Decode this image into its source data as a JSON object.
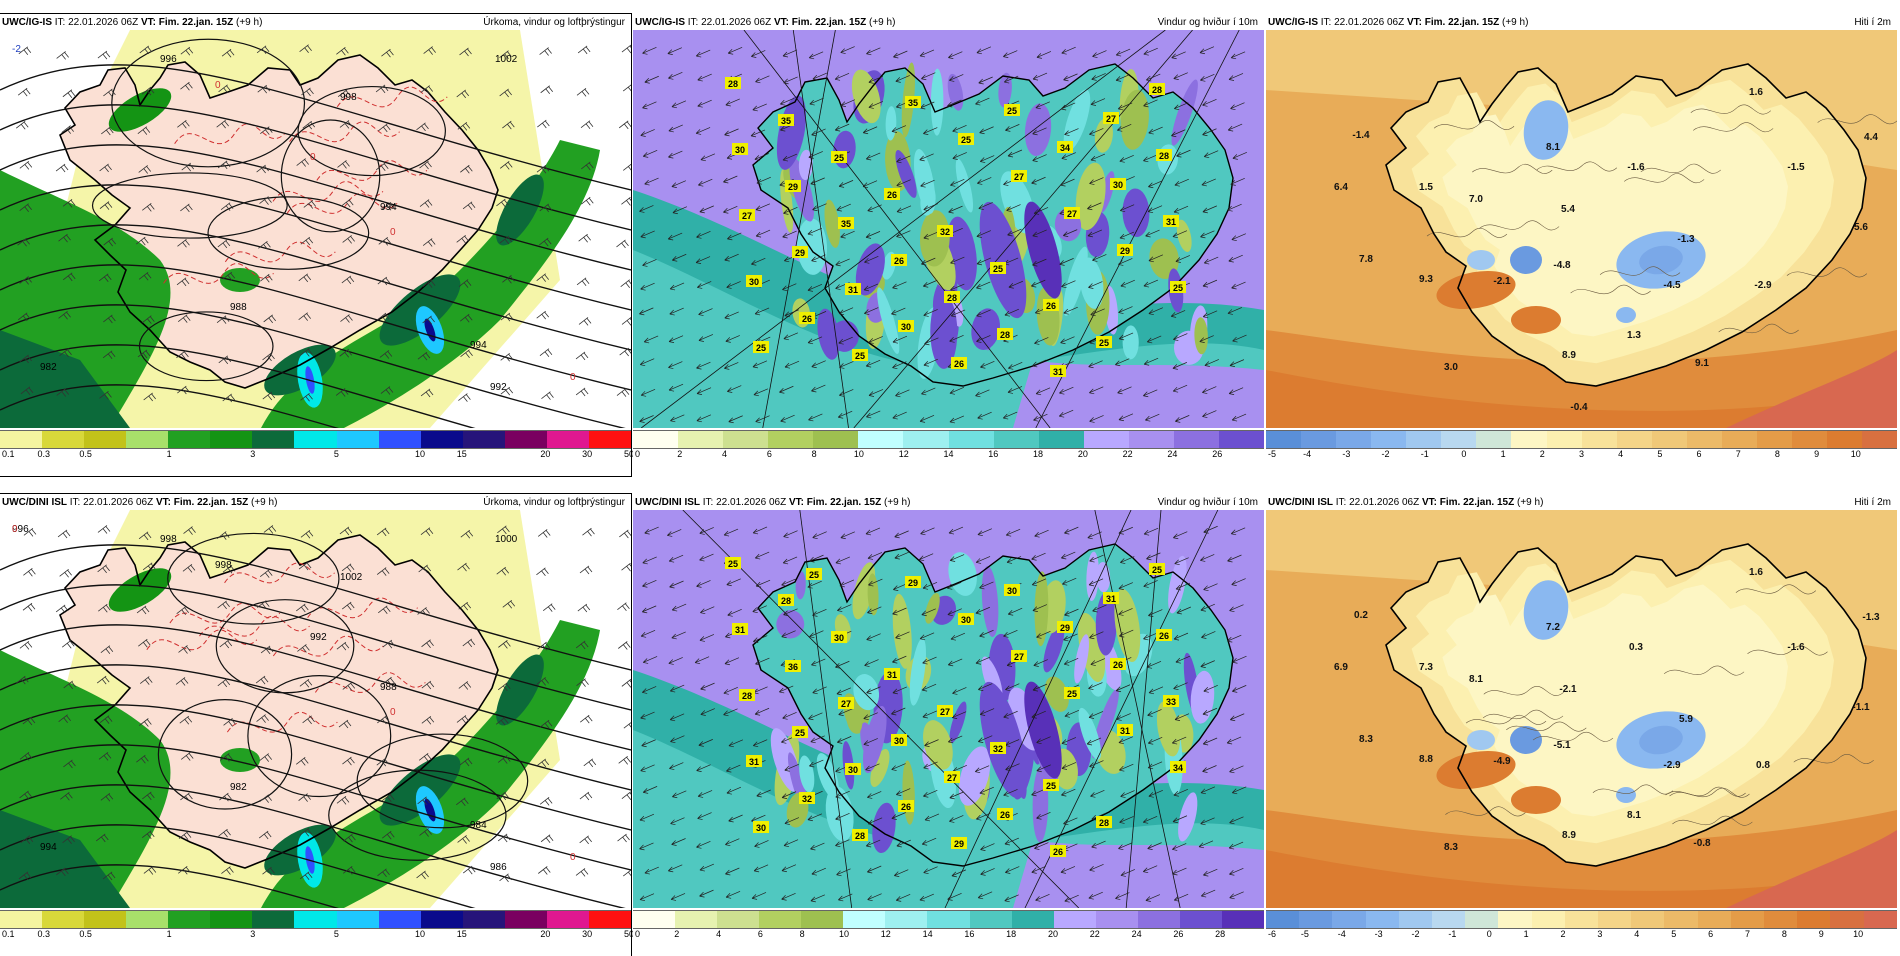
{
  "colors": {
    "precip": [
      "#f4f4a0",
      "#d8d83a",
      "#c2c21a",
      "#a8e06a",
      "#22a022",
      "#149414",
      "#0c6a3a",
      "#00e8e8",
      "#1ec8ff",
      "#3050ff",
      "#0a0a8c",
      "#26147a",
      "#7a0060",
      "#e01890",
      "#ff1010"
    ],
    "wind": [
      "#fffff0",
      "#e6f2b0",
      "#cde090",
      "#b2d060",
      "#9ec050",
      "#c0ffff",
      "#9ef0f0",
      "#70e0e0",
      "#50c8c0",
      "#30b0a8",
      "#b8a8ff",
      "#a890f0",
      "#8c70e0",
      "#6c50d0",
      "#5830b8",
      "#ffb0b0",
      "#ff8080",
      "#e06060"
    ],
    "temp": [
      "#5a8fd8",
      "#6a9ae0",
      "#7aa8e8",
      "#8ab8f0",
      "#a0c8f0",
      "#b8d8f0",
      "#cfe6d8",
      "#fdf6c4",
      "#fcf0b0",
      "#f8e29a",
      "#f4d488",
      "#f0c878",
      "#ecba68",
      "#e8ac58",
      "#e49c48",
      "#e08c3c",
      "#dc7c30",
      "#d87040",
      "#d86850"
    ]
  },
  "panels": [
    {
      "model": "UWC/IG-IS",
      "it_label": "IT:",
      "it_value": "22.01.2026 06Z",
      "vt_label": "VT:",
      "vt_value": "Fim. 22.jan. 15Z",
      "lead": "(+9 h)",
      "product": "Úrkoma, vindur og loftþrýstingur",
      "labels": [
        {
          "t": "-2"
        },
        {
          "t": "996"
        },
        {
          "t": "1002"
        },
        {
          "t": "998"
        },
        {
          "t": "994"
        },
        {
          "t": "988"
        },
        {
          "t": "994"
        },
        {
          "t": "992"
        },
        {
          "t": "982"
        },
        {
          "t": "0"
        },
        {
          "t": "0"
        },
        {
          "t": "0"
        },
        {
          "t": "0"
        }
      ],
      "ticks": [
        "0.1",
        "0.3",
        "0.5",
        "1",
        "3",
        "5",
        "10",
        "15",
        "20",
        "30",
        "50"
      ]
    },
    {
      "model": "UWC/IG-IS",
      "it_label": "IT:",
      "it_value": "22.01.2026 06Z",
      "vt_label": "VT:",
      "vt_value": "Fim. 22.jan. 15Z",
      "lead": "(+9 h)",
      "product": "Vindur og hviður í 10m",
      "gusts": [
        "28",
        "35",
        "25",
        "26",
        "32",
        "25",
        "26",
        "25",
        "28",
        "30",
        "29",
        "35",
        "26",
        "28",
        "28",
        "31",
        "27",
        "28",
        "27",
        "29",
        "31",
        "30",
        "26",
        "25",
        "34",
        "30",
        "31",
        "30",
        "26",
        "25",
        "35",
        "25",
        "27",
        "27",
        "29",
        "25",
        "25"
      ],
      "ticks": [
        "0",
        "2",
        "4",
        "6",
        "8",
        "10",
        "12",
        "14",
        "16",
        "18",
        "20",
        "22",
        "24",
        "26"
      ]
    },
    {
      "model": "UWC/IG-IS",
      "it_label": "IT:",
      "it_value": "22.01.2026 06Z",
      "vt_label": "VT:",
      "vt_value": "Fim. 22.jan. 15Z",
      "lead": "(+9 h)",
      "product": "Hiti í 2m",
      "temps": [
        "1.6",
        "4.4",
        "-1.4",
        "8.1",
        "-1.6",
        "-1.5",
        "6.4",
        "1.5",
        "7.0",
        "5.4",
        "5.6",
        "-1.3",
        "7.8",
        "9.3",
        "-2.1",
        "-4.8",
        "-4.5",
        "-2.9",
        "1.3",
        "3.0",
        "8.9",
        "9.1",
        "-0.4"
      ],
      "ticks": [
        "-5",
        "-4",
        "-3",
        "-2",
        "-1",
        "0",
        "1",
        "2",
        "3",
        "4",
        "5",
        "6",
        "7",
        "8",
        "9",
        "10"
      ]
    },
    {
      "model": "UWC/DINI ISL",
      "it_label": "IT:",
      "it_value": "22.01.2026 06Z",
      "vt_label": "VT:",
      "vt_value": "Fim. 22.jan. 15Z",
      "lead": "(+9 h)",
      "product": "Úrkoma, vindur og loftþrýstingur",
      "labels": [
        {
          "t": "996"
        },
        {
          "t": "998"
        },
        {
          "t": "1000"
        },
        {
          "t": "1002"
        },
        {
          "t": "988"
        },
        {
          "t": "982"
        },
        {
          "t": "984"
        },
        {
          "t": "986"
        },
        {
          "t": "994"
        },
        {
          "t": "998"
        },
        {
          "t": "992"
        },
        {
          "t": "0"
        },
        {
          "t": "0"
        },
        {
          "t": "0"
        }
      ],
      "ticks": [
        "0.1",
        "0.3",
        "0.5",
        "1",
        "3",
        "5",
        "10",
        "15",
        "20",
        "30",
        "50"
      ]
    },
    {
      "model": "UWC/DINI ISL",
      "it_label": "IT:",
      "it_value": "22.01.2026 06Z",
      "vt_label": "VT:",
      "vt_value": "Fim. 22.jan. 15Z",
      "lead": "(+9 h)",
      "product": "Vindur og hviður í 10m",
      "gusts": [
        "25",
        "28",
        "30",
        "31",
        "27",
        "32",
        "25",
        "28",
        "25",
        "31",
        "36",
        "27",
        "30",
        "27",
        "26",
        "26",
        "31",
        "26",
        "28",
        "25",
        "30",
        "26",
        "29",
        "30",
        "29",
        "26",
        "33",
        "31",
        "32",
        "28",
        "29",
        "30",
        "27",
        "25",
        "31",
        "34",
        "30",
        "25"
      ],
      "ticks": [
        "0",
        "2",
        "4",
        "6",
        "8",
        "10",
        "12",
        "14",
        "16",
        "18",
        "20",
        "22",
        "24",
        "26",
        "28"
      ]
    },
    {
      "model": "UWC/DINI ISL",
      "it_label": "IT:",
      "it_value": "22.01.2026 06Z",
      "vt_label": "VT:",
      "vt_value": "Fim. 22.jan. 15Z",
      "lead": "(+9 h)",
      "product": "Hiti í 2m",
      "temps": [
        "1.6",
        "-1.3",
        "0.2",
        "7.2",
        "0.3",
        "-1.6",
        "6.9",
        "7.3",
        "8.1",
        "-2.1",
        "-1.1",
        "5.9",
        "8.3",
        "8.8",
        "-4.9",
        "-5.1",
        "-2.9",
        "0.8",
        "8.1",
        "8.3",
        "8.9",
        "-0.8"
      ],
      "ticks": [
        "-6",
        "-5",
        "-4",
        "-3",
        "-2",
        "-1",
        "0",
        "1",
        "2",
        "3",
        "4",
        "5",
        "6",
        "7",
        "8",
        "9",
        "10"
      ]
    }
  ]
}
